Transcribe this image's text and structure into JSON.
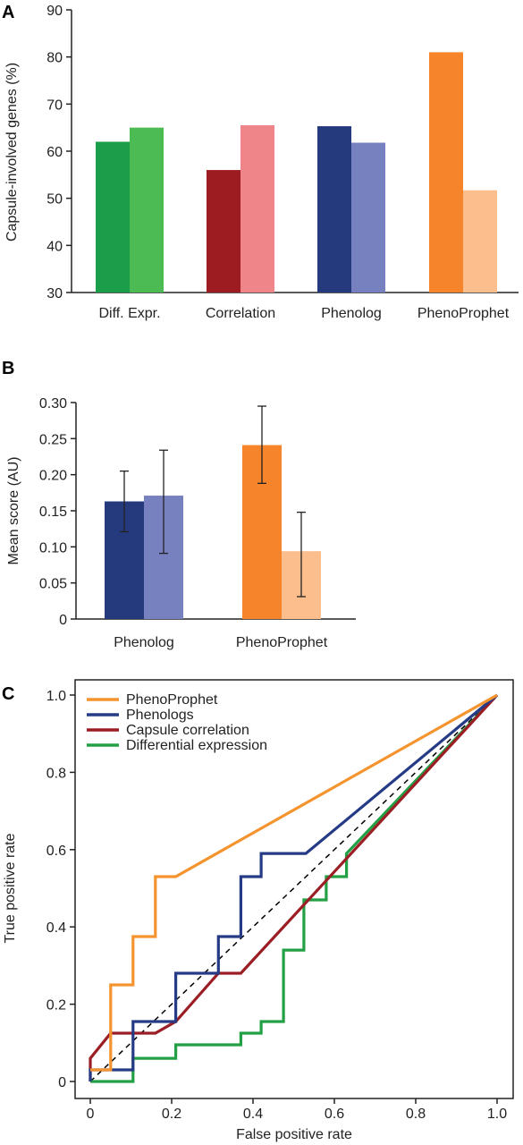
{
  "chart_data": [
    {
      "panel": "A",
      "type": "bar",
      "ylabel": "Capsule-involved genes (%)",
      "xlabel": "",
      "ylim": [
        30,
        90
      ],
      "yticks": [
        "30",
        "40",
        "50",
        "60",
        "70",
        "80",
        "90"
      ],
      "categories": [
        "Diff. Expr.",
        "Correlation",
        "Phenolog",
        "PhenoProphet"
      ],
      "bars": [
        {
          "values": [
            62,
            65
          ],
          "colors": [
            "#1a9e4a",
            "#4dbb53"
          ]
        },
        {
          "values": [
            56,
            65.5
          ],
          "colors": [
            "#9d1c21",
            "#f08589"
          ]
        },
        {
          "values": [
            65.3,
            61.8
          ],
          "colors": [
            "#253a7d",
            "#7781c0"
          ]
        },
        {
          "values": [
            81,
            51.7
          ],
          "colors": [
            "#f5842b",
            "#fbbe8c"
          ]
        }
      ]
    },
    {
      "panel": "B",
      "type": "bar",
      "ylabel": "Mean score (AU)",
      "xlabel": "",
      "ylim": [
        0,
        0.3
      ],
      "yticks": [
        "0",
        "0.05",
        "0.10",
        "0.15",
        "0.20",
        "0.25",
        "0.30"
      ],
      "categories": [
        "Phenolog",
        "PhenoProphet"
      ],
      "bars": [
        {
          "values": [
            0.163,
            0.171
          ],
          "errors": [
            [
              0.121,
              0.205
            ],
            [
              0.091,
              0.234
            ]
          ],
          "colors": [
            "#253a7d",
            "#7781c0"
          ]
        },
        {
          "values": [
            0.241,
            0.094
          ],
          "errors": [
            [
              0.188,
              0.295
            ],
            [
              0.031,
              0.148
            ]
          ],
          "colors": [
            "#f5842b",
            "#fbbe8c"
          ]
        }
      ]
    },
    {
      "panel": "C",
      "type": "line",
      "xlabel": "False positive rate",
      "ylabel": "True positive rate",
      "xlim": [
        0,
        1
      ],
      "ylim": [
        0,
        1
      ],
      "xticks": [
        "0",
        "0.2",
        "0.4",
        "0.6",
        "0.8",
        "1.0"
      ],
      "yticks": [
        "0",
        "0.2",
        "0.4",
        "0.6",
        "0.8",
        "1.0"
      ],
      "legend_position": "top-left",
      "series": [
        {
          "name": "PhenoProphet",
          "color": "#f5942e",
          "x": [
            0,
            0.05,
            0.05,
            0.105,
            0.105,
            0.16,
            0.16,
            0.21,
            1.0
          ],
          "y": [
            0.03,
            0.03,
            0.25,
            0.25,
            0.375,
            0.375,
            0.53,
            0.53,
            1.0
          ]
        },
        {
          "name": "Phenologs",
          "color": "#263b86",
          "x": [
            0,
            0,
            0.105,
            0.105,
            0.21,
            0.21,
            0.315,
            0.315,
            0.37,
            0.37,
            0.42,
            0.42,
            0.53,
            1.0
          ],
          "y": [
            0,
            0.03,
            0.03,
            0.155,
            0.155,
            0.28,
            0.28,
            0.375,
            0.375,
            0.53,
            0.53,
            0.59,
            0.59,
            1.0
          ]
        },
        {
          "name": "Capsule correlation",
          "color": "#9b1e25",
          "x": [
            0,
            0,
            0.05,
            0.16,
            0.21,
            0.315,
            0.37,
            1.0
          ],
          "y": [
            0,
            0.06,
            0.125,
            0.125,
            0.155,
            0.28,
            0.28,
            1.0
          ]
        },
        {
          "name": "Differential expression",
          "color": "#23a045",
          "x": [
            0,
            0.105,
            0.105,
            0.21,
            0.21,
            0.37,
            0.37,
            0.42,
            0.42,
            0.475,
            0.475,
            0.525,
            0.525,
            0.58,
            0.58,
            0.63,
            0.63,
            1.0
          ],
          "y": [
            0,
            0,
            0.06,
            0.06,
            0.095,
            0.095,
            0.125,
            0.125,
            0.155,
            0.155,
            0.34,
            0.34,
            0.47,
            0.47,
            0.53,
            0.53,
            0.59,
            1.0
          ]
        }
      ],
      "reference_line": {
        "x": [
          0,
          1
        ],
        "y": [
          0,
          1
        ],
        "style": "dashed",
        "color": "#000000"
      }
    }
  ]
}
